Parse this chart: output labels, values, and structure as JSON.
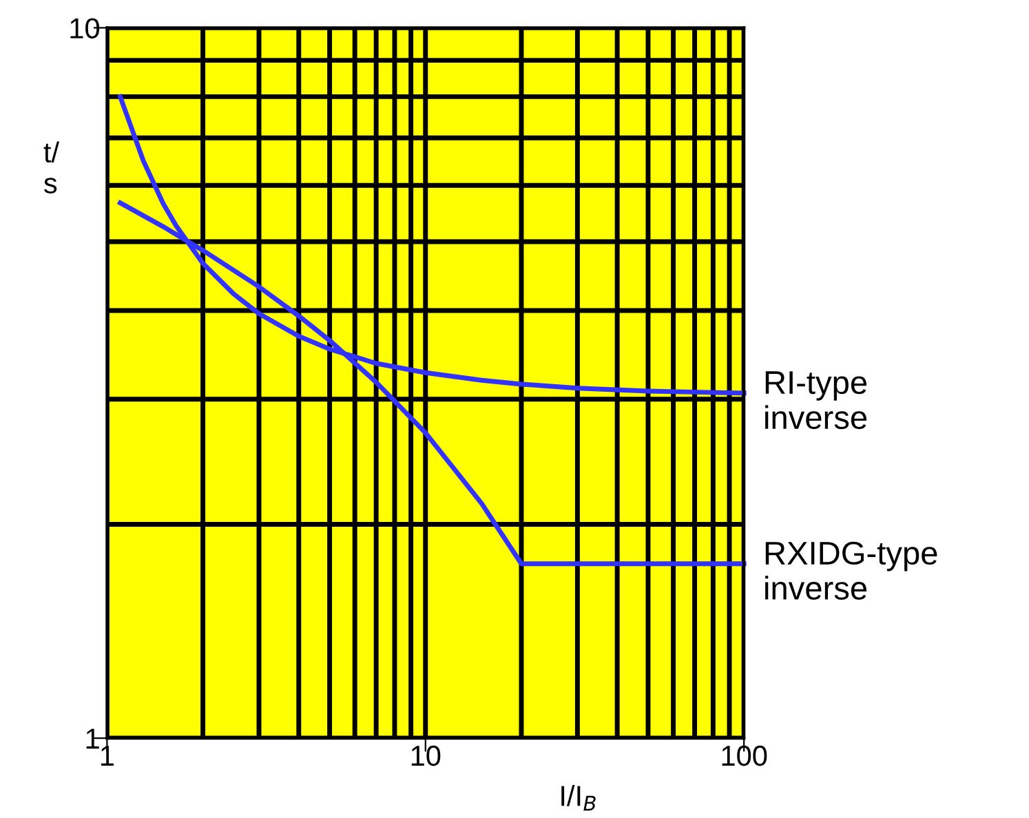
{
  "chart_data": {
    "type": "line",
    "xlabel": "I/I$_{B}$",
    "ylabel": "t/ s",
    "log": "xy",
    "grid": true,
    "legend": false,
    "marker": "none",
    "line_style": "solid",
    "xlim": [
      1,
      100
    ],
    "ylim": [
      1,
      10
    ],
    "xticks": [
      1,
      {
        "value": 2,
        "label": null
      },
      {
        "value": 3,
        "label": null
      },
      {
        "value": 4,
        "label": null
      },
      {
        "value": 5,
        "label": null
      },
      {
        "value": 6,
        "label": null
      },
      {
        "value": 7,
        "label": null
      },
      {
        "value": 8,
        "label": null
      },
      {
        "value": 9,
        "label": null
      },
      10,
      {
        "value": 20,
        "label": null
      },
      {
        "value": 30,
        "label": null
      },
      {
        "value": 40,
        "label": null
      },
      {
        "value": 50,
        "label": null
      },
      {
        "value": 60,
        "label": null
      },
      {
        "value": 70,
        "label": null
      },
      {
        "value": 80,
        "label": null
      },
      {
        "value": 90,
        "label": null
      },
      100
    ],
    "yticks": [
      1,
      {
        "value": 2,
        "label": null
      },
      {
        "value": 3,
        "label": null
      },
      {
        "value": 4,
        "label": null
      },
      {
        "value": 5,
        "label": null
      },
      {
        "value": 6,
        "label": null
      },
      {
        "value": 7,
        "label": null
      },
      {
        "value": 8,
        "label": null
      },
      {
        "value": 9,
        "label": null
      },
      10
    ],
    "series": [
      {
        "name": "RI-type inverse",
        "color": "#3333ff",
        "x": [
          1.1,
          1.3,
          1.5,
          1.65,
          2,
          2.5,
          3,
          4,
          5,
          7,
          10,
          15,
          20,
          30,
          50,
          100
        ],
        "values": [
          8.0,
          6.5,
          5.66,
          5.26,
          4.66,
          4.22,
          3.96,
          3.68,
          3.53,
          3.37,
          3.27,
          3.19,
          3.15,
          3.11,
          3.08,
          3.06
        ]
      },
      {
        "name": "RXIDG-type inverse",
        "color": "#3333ff",
        "x": [
          1.1,
          1.5,
          2,
          3,
          4,
          5,
          7,
          10,
          15,
          20,
          50,
          100
        ],
        "values": [
          5.67,
          5.25,
          4.86,
          4.32,
          3.93,
          3.63,
          3.17,
          2.69,
          2.14,
          1.76,
          1.76,
          1.76
        ]
      }
    ]
  }
}
